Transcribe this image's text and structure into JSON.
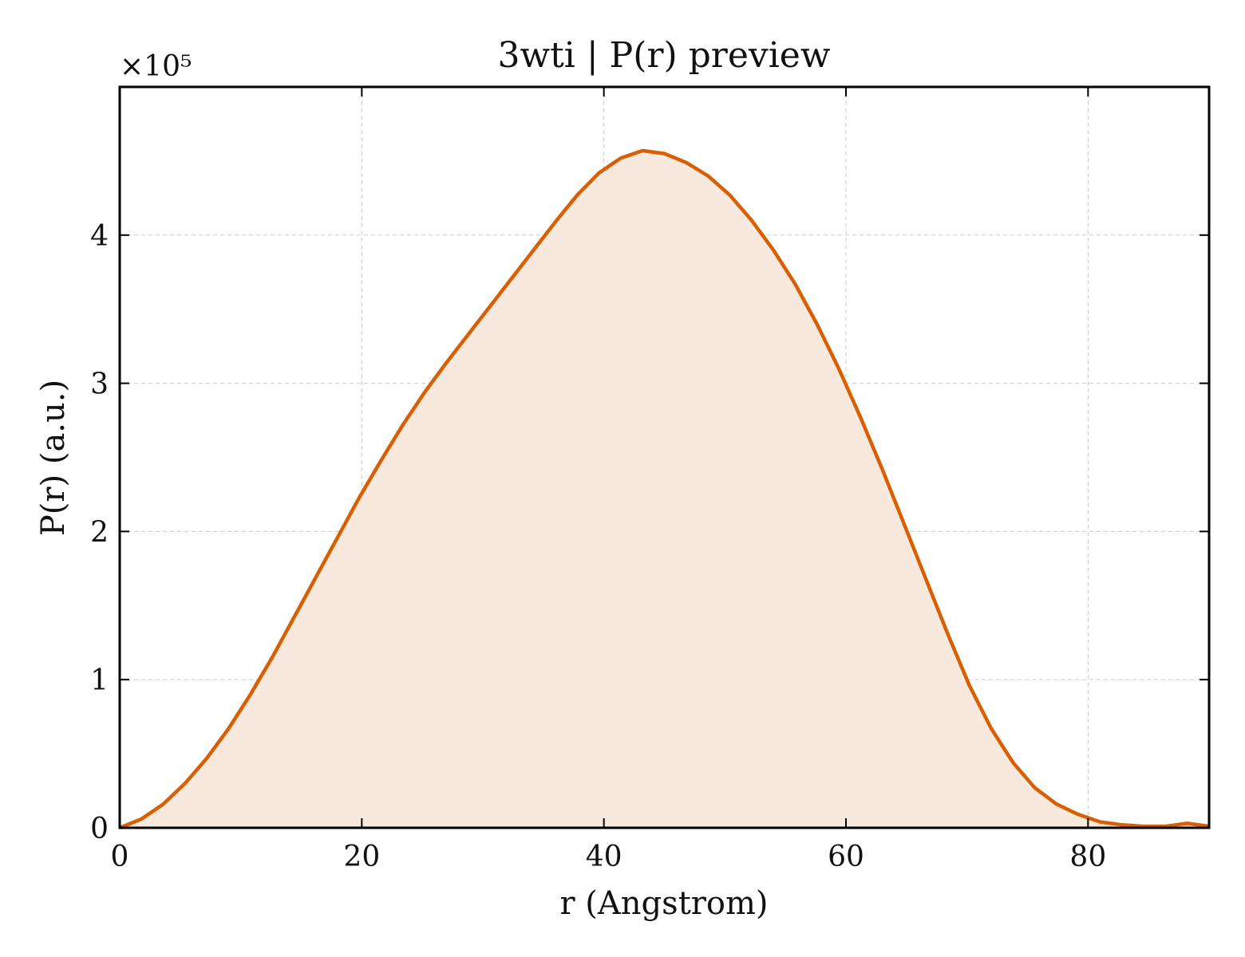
{
  "chart_data": {
    "type": "area",
    "title": "3wti | P(r) preview",
    "xlabel": "r (Angstrom)",
    "ylabel": "P(r) (a.u.)",
    "y_scale_label": "×10⁵",
    "xlim": [
      0,
      90
    ],
    "ylim": [
      0,
      5.0
    ],
    "x_ticks": [
      0,
      20,
      40,
      60,
      80
    ],
    "x_tick_labels": [
      "0",
      "20",
      "40",
      "60",
      "80"
    ],
    "y_ticks": [
      0,
      1,
      2,
      3,
      4
    ],
    "y_tick_labels": [
      "0",
      "1",
      "2",
      "3",
      "4"
    ],
    "grid": true,
    "colors": {
      "line": "#d95f02",
      "fill": "#f8e9df",
      "grid": "#cccccc",
      "axis": "#000000"
    },
    "series": [
      {
        "x": [
          0,
          1.8,
          3.6,
          5.4,
          7.2,
          9.0,
          10.8,
          12.6,
          14.4,
          16.2,
          18.0,
          19.8,
          21.6,
          23.4,
          25.2,
          27.0,
          28.8,
          30.6,
          32.4,
          34.2,
          36.0,
          37.8,
          39.6,
          41.4,
          43.2,
          45.0,
          46.8,
          48.6,
          50.4,
          52.2,
          54.0,
          55.8,
          57.6,
          59.4,
          61.2,
          63.0,
          64.8,
          66.6,
          68.4,
          70.2,
          72.0,
          73.8,
          75.6,
          77.4,
          79.2,
          81.0,
          82.8,
          84.6,
          86.4,
          88.2,
          90.0
        ],
        "values": [
          0.0,
          0.06,
          0.16,
          0.3,
          0.47,
          0.67,
          0.9,
          1.15,
          1.42,
          1.69,
          1.96,
          2.23,
          2.48,
          2.72,
          2.94,
          3.14,
          3.33,
          3.52,
          3.71,
          3.9,
          4.09,
          4.27,
          4.42,
          4.52,
          4.57,
          4.55,
          4.49,
          4.4,
          4.27,
          4.1,
          3.9,
          3.67,
          3.4,
          3.1,
          2.77,
          2.42,
          2.05,
          1.68,
          1.31,
          0.96,
          0.67,
          0.44,
          0.27,
          0.16,
          0.09,
          0.04,
          0.02,
          0.01,
          0.01,
          0.03,
          0.01
        ]
      }
    ]
  }
}
